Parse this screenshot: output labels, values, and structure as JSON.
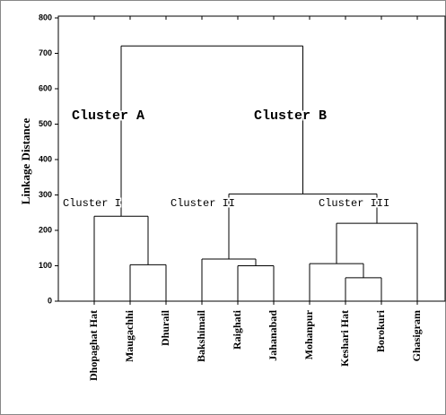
{
  "chart_data": {
    "type": "dendrogram",
    "ylabel": "Linkage Distance",
    "leaves": [
      "Dhopaghat Hat",
      "Maugachhi",
      "Dhurail",
      "Bakshimail",
      "Raighati",
      "Jahanabad",
      "Mohanpur",
      "Keshari Hat",
      "Borokuri",
      "Ghasigram"
    ],
    "merges": [
      {
        "a": 1,
        "b": 2,
        "height": 103
      },
      {
        "a": 0,
        "b": 10,
        "height": 240
      },
      {
        "a": 4,
        "b": 5,
        "height": 100
      },
      {
        "a": 3,
        "b": 12,
        "height": 119
      },
      {
        "a": 7,
        "b": 8,
        "height": 66
      },
      {
        "a": 6,
        "b": 14,
        "height": 106
      },
      {
        "a": 15,
        "b": 9,
        "height": 220
      },
      {
        "a": 13,
        "b": 16,
        "height": 303
      },
      {
        "a": 11,
        "b": 17,
        "height": 721
      }
    ],
    "annotations": [
      "Cluster A",
      "Cluster B",
      "Cluster I",
      "Cluster II",
      "Cluster III"
    ],
    "ylim": [
      0,
      800
    ],
    "yticks": [
      0,
      100,
      200,
      300,
      400,
      500,
      600,
      700,
      800
    ],
    "color": "#000000"
  }
}
